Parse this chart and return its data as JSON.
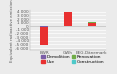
{
  "categories": [
    "BWR",
    "GWh",
    "EEG-Dänemark"
  ],
  "series": [
    {
      "name": "Demolition",
      "color": "#7b5ea7",
      "values": [
        -200,
        50,
        50
      ]
    },
    {
      "name": "Use",
      "color": "#e83030",
      "values": [
        -5000,
        3800,
        900
      ]
    },
    {
      "name": "Renovation",
      "color": "#70ad47",
      "values": [
        50,
        50,
        50
      ]
    },
    {
      "name": "Construction",
      "color": "#4ec9c9",
      "values": [
        100,
        100,
        100
      ]
    }
  ],
  "ylim": [
    -6500,
    4500
  ],
  "yticks": [
    4000,
    3000,
    2000,
    1000,
    0,
    -1000,
    -2000,
    -3000,
    -4000,
    -5000,
    -6000
  ],
  "ytick_labels": [
    "4 000",
    "3 000",
    "2 000",
    "1 000",
    "0",
    "-1 000",
    "-2 000",
    "-3 000",
    "-4 000",
    "-5 000",
    "-6 000"
  ],
  "ylabel": "Equivalent radioactive emissions",
  "background_color": "#ebebeb",
  "plot_bg": "#ebebeb",
  "grid_color": "#ffffff",
  "bar_width": 0.35,
  "legend_fontsize": 3.2,
  "axis_fontsize": 2.8,
  "tick_fontsize": 3.0,
  "legend_labels": [
    "Demolition",
    "Use",
    "Renovation",
    "Construction"
  ],
  "legend_colors": [
    "#7b5ea7",
    "#e83030",
    "#70ad47",
    "#4ec9c9"
  ]
}
